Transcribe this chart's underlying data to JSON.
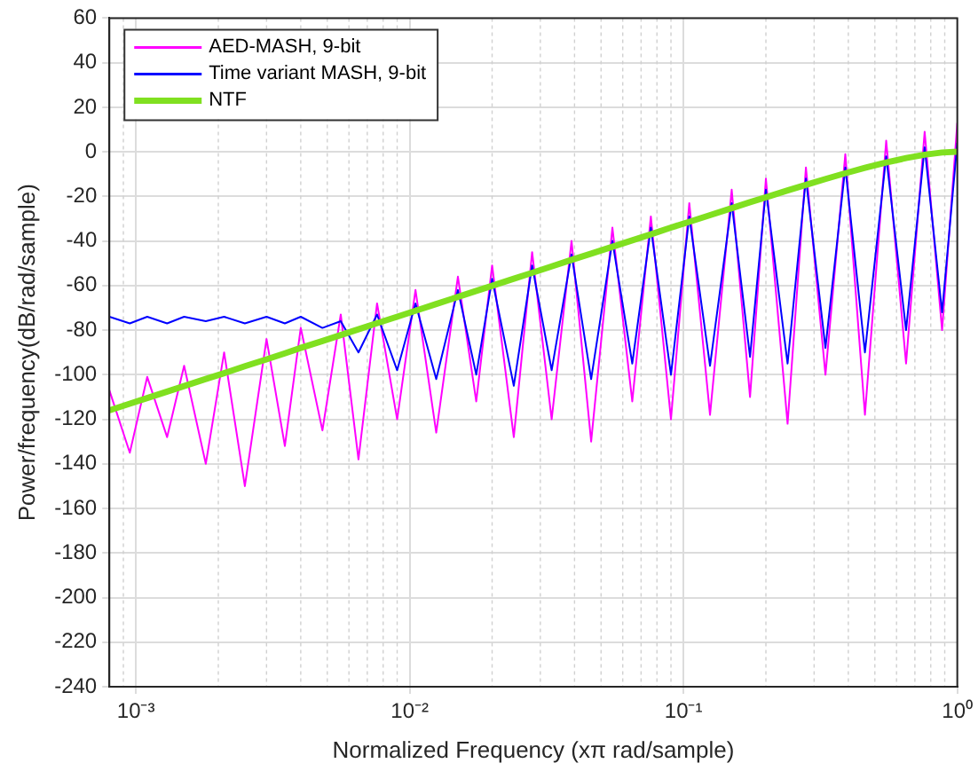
{
  "chart_data": {
    "type": "line",
    "xlabel": "Normalized Frequency (xπ rad/sample)",
    "ylabel": "Power/frequency(dB/rad/sample)",
    "log": "x",
    "grid": true,
    "legend": "top left",
    "xlim": [
      0.0008,
      1
    ],
    "xticks": [
      {
        "value": 0.001,
        "label": "10⁻³"
      },
      {
        "value": 0.01,
        "label": "10⁻²"
      },
      {
        "value": 0.1,
        "label": "10⁻¹"
      },
      {
        "value": 1,
        "label": "10⁰"
      }
    ],
    "ylim": [
      -240,
      60
    ],
    "yticks": [
      -240,
      -220,
      -200,
      -180,
      -160,
      -140,
      -120,
      -100,
      -80,
      -60,
      -40,
      -20,
      0,
      20,
      40,
      60
    ],
    "x": [
      0.0008,
      0.00095,
      0.0011,
      0.0013,
      0.0015,
      0.0018,
      0.0021,
      0.0025,
      0.003,
      0.0035,
      0.004,
      0.0048,
      0.0056,
      0.0065,
      0.0076,
      0.009,
      0.0105,
      0.0125,
      0.015,
      0.0175,
      0.02,
      0.024,
      0.028,
      0.033,
      0.039,
      0.046,
      0.055,
      0.065,
      0.076,
      0.09,
      0.105,
      0.125,
      0.15,
      0.175,
      0.2,
      0.24,
      0.28,
      0.33,
      0.39,
      0.46,
      0.55,
      0.65,
      0.76,
      0.88,
      1
    ],
    "series": [
      {
        "name": "AED-MASH, 9-bit",
        "color": "#ff00ff",
        "values": [
          -107,
          -135,
          -101,
          -128,
          -96,
          -140,
          -90,
          -150,
          -84,
          -132,
          -79,
          -125,
          -73,
          -138,
          -68,
          -120,
          -62,
          -126,
          -56,
          -112,
          -51,
          -128,
          -45,
          -120,
          -40,
          -130,
          -34,
          -112,
          -29,
          -120,
          -23,
          -118,
          -17,
          -110,
          -12,
          -122,
          -7,
          -100,
          -1,
          -118,
          5,
          -95,
          9,
          -80,
          13
        ]
      },
      {
        "name": "Time variant MASH, 9-bit",
        "color": "#0000ff",
        "values": [
          -74,
          -77,
          -74,
          -77,
          -74,
          -76,
          -74,
          -77,
          -74,
          -77,
          -74,
          -79,
          -76,
          -90,
          -73,
          -98,
          -68,
          -102,
          -62,
          -100,
          -57,
          -105,
          -51,
          -98,
          -46,
          -102,
          -40,
          -95,
          -34,
          -100,
          -29,
          -96,
          -23,
          -92,
          -17,
          -95,
          -12,
          -88,
          -7,
          -90,
          -2,
          -80,
          2,
          -72,
          4
        ]
      },
      {
        "name": "NTF",
        "color": "#80e020",
        "values": [
          -116,
          -113,
          -110.5,
          -107.6,
          -105.1,
          -101.9,
          -99.3,
          -96.2,
          -93.1,
          -90.4,
          -88,
          -84.9,
          -82.2,
          -79.6,
          -76.9,
          -74,
          -71.3,
          -68.3,
          -65.1,
          -62.4,
          -60.1,
          -56.9,
          -54.3,
          -51.4,
          -48.5,
          -45.7,
          -42.6,
          -39.7,
          -37,
          -34,
          -31.4,
          -28.4,
          -25.3,
          -22.6,
          -20.4,
          -17.3,
          -14.8,
          -12.2,
          -9.6,
          -7.2,
          -4.8,
          -2.8,
          -1.3,
          -0.3,
          0
        ]
      }
    ]
  }
}
